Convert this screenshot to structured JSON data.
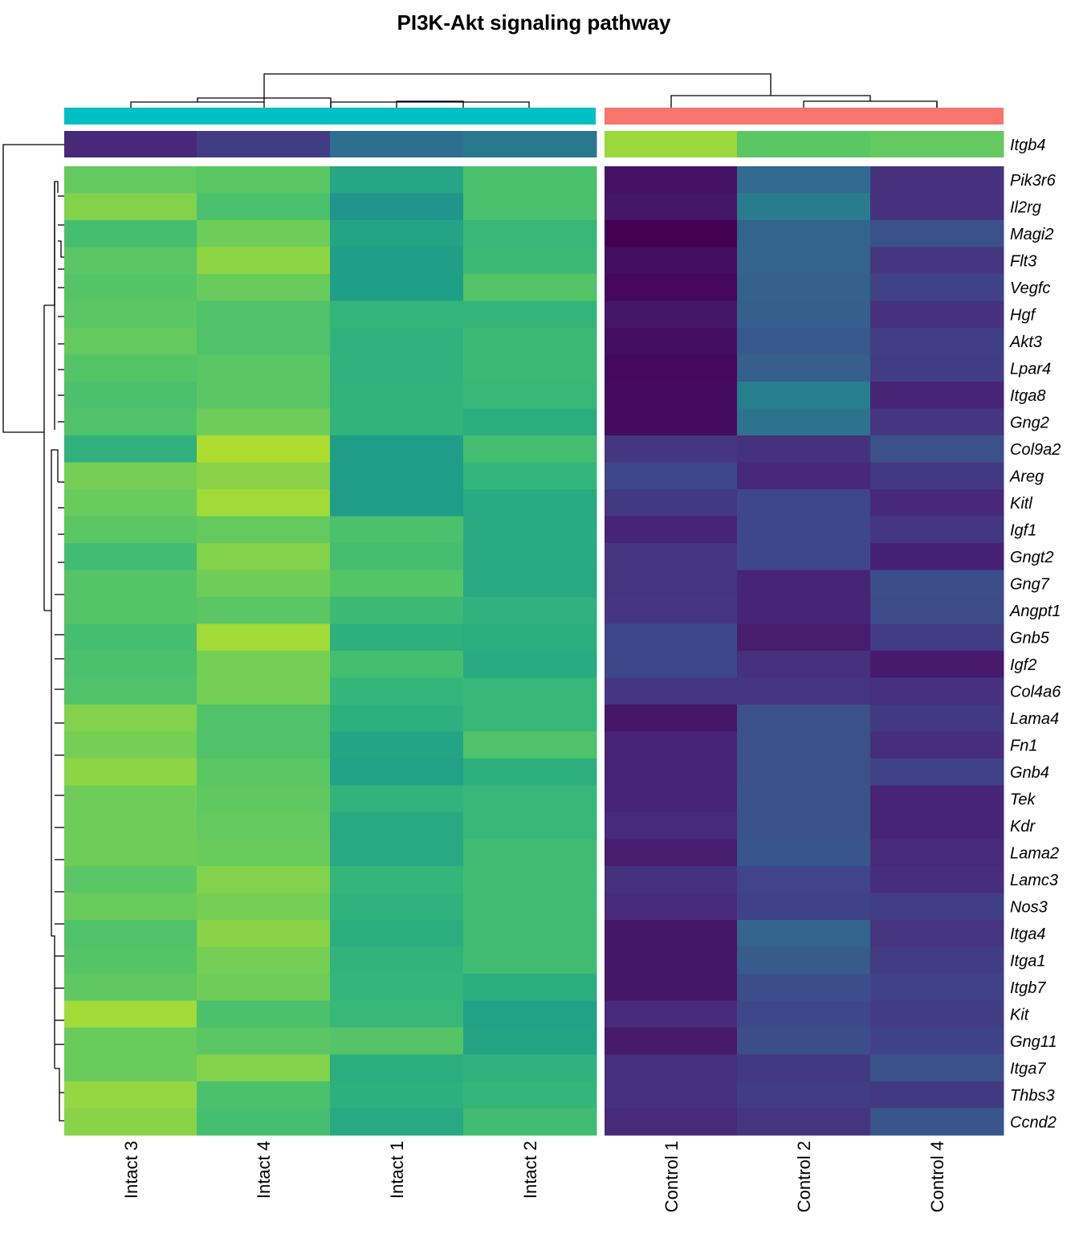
{
  "chart_data": {
    "type": "heatmap",
    "title": "PI3K-Akt signaling pathway",
    "colormap": "viridis",
    "columns": [
      "Intact 3",
      "Intact 4",
      "Intact 1",
      "Intact 2",
      "Control 1",
      "Control 2",
      "Control 4"
    ],
    "column_groups": [
      {
        "name": "Intact",
        "color": "#00BFC4",
        "columns": [
          "Intact 3",
          "Intact 4",
          "Intact 1",
          "Intact 2"
        ]
      },
      {
        "name": "Control",
        "color": "#F8766D",
        "columns": [
          "Control 1",
          "Control 2",
          "Control 4"
        ]
      }
    ],
    "split_row": {
      "label": "Itgb4",
      "values": [
        0.11,
        0.18,
        0.36,
        0.4,
        0.85,
        0.74,
        0.76
      ]
    },
    "rows": [
      "Pik3r6",
      "Il2rg",
      "Magi2",
      "Flt3",
      "Vegfc",
      "Hgf",
      "Akt3",
      "Lpar4",
      "Itga8",
      "Gng2",
      "Col9a2",
      "Areg",
      "Kitl",
      "Igf1",
      "Gngt2",
      "Gng7",
      "Angpt1",
      "Gnb5",
      "Igf2",
      "Col4a6",
      "Lama4",
      "Fn1",
      "Gnb4",
      "Tek",
      "Kdr",
      "Lama2",
      "Lamc3",
      "Nos3",
      "Itga4",
      "Itga1",
      "Itgb7",
      "Kit",
      "Gng11",
      "Itga7",
      "Thbs3",
      "Ccnd2"
    ],
    "values": [
      [
        0.76,
        0.74,
        0.59,
        0.71,
        0.05,
        0.34,
        0.14
      ],
      [
        0.81,
        0.71,
        0.52,
        0.71,
        0.06,
        0.42,
        0.14
      ],
      [
        0.7,
        0.78,
        0.58,
        0.67,
        0.0,
        0.32,
        0.25
      ],
      [
        0.74,
        0.83,
        0.56,
        0.68,
        0.04,
        0.32,
        0.16
      ],
      [
        0.73,
        0.77,
        0.56,
        0.73,
        0.02,
        0.31,
        0.2
      ],
      [
        0.74,
        0.72,
        0.66,
        0.66,
        0.06,
        0.3,
        0.14
      ],
      [
        0.76,
        0.72,
        0.64,
        0.68,
        0.04,
        0.28,
        0.19
      ],
      [
        0.73,
        0.74,
        0.64,
        0.68,
        0.02,
        0.3,
        0.18
      ],
      [
        0.71,
        0.74,
        0.65,
        0.67,
        0.03,
        0.43,
        0.1
      ],
      [
        0.72,
        0.78,
        0.65,
        0.62,
        0.03,
        0.38,
        0.16
      ],
      [
        0.64,
        0.88,
        0.55,
        0.7,
        0.16,
        0.14,
        0.25
      ],
      [
        0.79,
        0.82,
        0.55,
        0.66,
        0.22,
        0.11,
        0.17
      ],
      [
        0.77,
        0.86,
        0.55,
        0.61,
        0.17,
        0.22,
        0.11
      ],
      [
        0.74,
        0.76,
        0.71,
        0.61,
        0.1,
        0.22,
        0.16
      ],
      [
        0.69,
        0.81,
        0.7,
        0.61,
        0.16,
        0.22,
        0.09
      ],
      [
        0.73,
        0.78,
        0.73,
        0.6,
        0.15,
        0.1,
        0.24
      ],
      [
        0.73,
        0.74,
        0.68,
        0.64,
        0.16,
        0.1,
        0.23
      ],
      [
        0.7,
        0.86,
        0.63,
        0.62,
        0.22,
        0.08,
        0.18
      ],
      [
        0.71,
        0.79,
        0.7,
        0.61,
        0.22,
        0.14,
        0.07
      ],
      [
        0.72,
        0.79,
        0.66,
        0.67,
        0.16,
        0.15,
        0.14
      ],
      [
        0.81,
        0.72,
        0.63,
        0.67,
        0.06,
        0.25,
        0.17
      ],
      [
        0.79,
        0.72,
        0.58,
        0.72,
        0.1,
        0.25,
        0.13
      ],
      [
        0.83,
        0.74,
        0.57,
        0.63,
        0.1,
        0.25,
        0.2
      ],
      [
        0.78,
        0.75,
        0.65,
        0.67,
        0.1,
        0.26,
        0.1
      ],
      [
        0.78,
        0.76,
        0.6,
        0.67,
        0.12,
        0.26,
        0.1
      ],
      [
        0.78,
        0.77,
        0.6,
        0.69,
        0.08,
        0.27,
        0.12
      ],
      [
        0.74,
        0.81,
        0.66,
        0.69,
        0.14,
        0.21,
        0.13
      ],
      [
        0.77,
        0.79,
        0.64,
        0.69,
        0.12,
        0.2,
        0.19
      ],
      [
        0.72,
        0.82,
        0.62,
        0.69,
        0.06,
        0.32,
        0.15
      ],
      [
        0.73,
        0.79,
        0.65,
        0.69,
        0.06,
        0.29,
        0.18
      ],
      [
        0.75,
        0.78,
        0.66,
        0.62,
        0.06,
        0.24,
        0.2
      ],
      [
        0.86,
        0.71,
        0.67,
        0.57,
        0.12,
        0.22,
        0.18
      ],
      [
        0.77,
        0.74,
        0.73,
        0.58,
        0.07,
        0.24,
        0.2
      ],
      [
        0.77,
        0.81,
        0.62,
        0.64,
        0.14,
        0.17,
        0.25
      ],
      [
        0.84,
        0.71,
        0.63,
        0.66,
        0.14,
        0.18,
        0.17
      ],
      [
        0.82,
        0.7,
        0.6,
        0.69,
        0.12,
        0.15,
        0.27
      ]
    ],
    "grid": false,
    "legend": "none"
  }
}
